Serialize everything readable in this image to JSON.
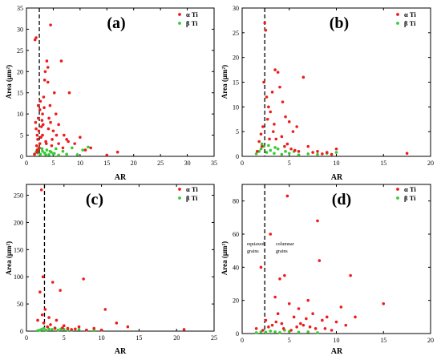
{
  "colors": {
    "alpha": "#ee1c1c",
    "beta": "#33cc33",
    "axis": "#000000",
    "threshold": "#000000"
  },
  "chart_data": [
    {
      "type": "scatter",
      "panel_label": "(a)",
      "xlabel": "AR",
      "ylabel": "Area (μm²)",
      "xlim": [
        0,
        35
      ],
      "ylim": [
        0,
        35
      ],
      "xticks": [
        0,
        5,
        10,
        15,
        20,
        25,
        30,
        35
      ],
      "yticks": [
        0,
        5,
        10,
        15,
        20,
        25,
        30,
        35
      ],
      "threshold_x": 2.4,
      "legend": [
        "α Ti",
        "β Ti"
      ],
      "annotations": [],
      "series": [
        {
          "name": "α Ti",
          "x": [
            1.6,
            1.8,
            2.0,
            2.2,
            1.7,
            1.9,
            2.1,
            2.3,
            2.5,
            2.8,
            3.0,
            3.2,
            3.5,
            3.8,
            4.0,
            4.2,
            4.5,
            4.8,
            5.2,
            5.5,
            6.0,
            6.5,
            7.0,
            7.5,
            8.0,
            9.0,
            10.0,
            11.0,
            12.0,
            15.0,
            17.0,
            2.0,
            2.5,
            3.4,
            4.0,
            4.5,
            5.0,
            6.0,
            1.8,
            2.2,
            2.6,
            3.0,
            3.3,
            3.6,
            4.4,
            2.4,
            2.7,
            3.1,
            1.5,
            2.0,
            2.9,
            3.7,
            4.1,
            4.7,
            5.6,
            6.8,
            7.8
          ],
          "y": [
            27.5,
            28.0,
            5.0,
            12.0,
            8.0,
            2.5,
            4.0,
            6.0,
            11.0,
            7.0,
            10.0,
            14.0,
            20.0,
            22.5,
            17.5,
            9.0,
            31.0,
            4.0,
            15.0,
            10.0,
            7.5,
            22.5,
            5.0,
            4.0,
            15.0,
            3.0,
            4.5,
            1.5,
            2.0,
            0.3,
            1.0,
            1.0,
            3.0,
            18.0,
            21.0,
            8.0,
            6.0,
            3.0,
            6.5,
            9.0,
            13.0,
            5.0,
            11.5,
            3.5,
            12.0,
            2.0,
            4.5,
            7.5,
            0.5,
            1.5,
            8.5,
            3.0,
            6.5,
            2.5,
            5.0,
            2.0,
            3.5
          ]
        },
        {
          "name": "β Ti",
          "x": [
            1.5,
            1.8,
            2.0,
            2.3,
            2.6,
            3.0,
            3.4,
            3.8,
            4.2,
            4.6,
            5.0,
            5.5,
            6.0,
            6.8,
            7.5,
            8.5,
            9.5,
            10.5,
            11.5,
            2.1,
            2.9,
            3.6,
            4.4,
            5.2
          ],
          "y": [
            0.5,
            1.0,
            1.5,
            2.0,
            0.5,
            1.2,
            0.8,
            1.5,
            0.4,
            1.0,
            0.6,
            1.8,
            0.3,
            1.2,
            0.5,
            2.0,
            0.4,
            1.5,
            2.2,
            0.8,
            1.8,
            0.4,
            1.2,
            0.7
          ]
        }
      ]
    },
    {
      "type": "scatter",
      "panel_label": "(b)",
      "xlabel": "AR",
      "ylabel": "Area (μm²)",
      "xlim": [
        0,
        20
      ],
      "ylim": [
        0,
        30
      ],
      "xticks": [
        0,
        5,
        10,
        15,
        20
      ],
      "yticks": [
        0,
        5,
        10,
        15,
        20,
        25,
        30
      ],
      "threshold_x": 2.4,
      "legend": [
        "α Ti",
        "β Ti"
      ],
      "annotations": [],
      "series": [
        {
          "name": "α Ti",
          "x": [
            2.4,
            2.5,
            2.3,
            2.6,
            2.8,
            3.0,
            3.2,
            3.5,
            3.8,
            4.0,
            4.3,
            4.6,
            5.0,
            5.4,
            5.8,
            6.5,
            7.0,
            8.0,
            9.0,
            10.0,
            17.5,
            1.8,
            2.0,
            2.2,
            2.7,
            3.3,
            3.6,
            4.2,
            4.8,
            5.2,
            6.0,
            1.6,
            2.1,
            2.9,
            3.4,
            4.5,
            5.6,
            7.5,
            8.5,
            9.5
          ],
          "y": [
            27.0,
            25.5,
            15.0,
            12.0,
            10.0,
            9.0,
            13.0,
            17.5,
            17.0,
            14.0,
            11.0,
            8.0,
            7.0,
            5.0,
            6.0,
            16.0,
            2.0,
            1.0,
            0.8,
            1.5,
            0.6,
            3.0,
            4.5,
            6.0,
            7.5,
            5.0,
            3.5,
            4.0,
            2.5,
            1.5,
            1.0,
            1.0,
            2.0,
            3.5,
            6.5,
            2.0,
            1.2,
            0.8,
            0.5,
            0.4
          ]
        },
        {
          "name": "β Ti",
          "x": [
            1.5,
            1.8,
            2.0,
            2.3,
            2.6,
            3.0,
            3.4,
            3.8,
            4.2,
            4.6,
            5.0,
            5.5,
            6.0,
            7.0,
            8.0,
            9.0,
            10.0,
            2.1,
            2.8,
            3.5
          ],
          "y": [
            0.5,
            1.0,
            1.5,
            2.0,
            0.8,
            1.2,
            0.6,
            1.5,
            0.4,
            1.0,
            0.6,
            1.0,
            0.3,
            0.5,
            0.4,
            0.6,
            0.8,
            2.5,
            2.2,
            1.8
          ]
        }
      ]
    },
    {
      "type": "scatter",
      "panel_label": "(c)",
      "xlabel": "AR",
      "ylabel": "Area (μm²)",
      "xlim": [
        0,
        25
      ],
      "ylim": [
        0,
        270
      ],
      "xticks": [
        0,
        5,
        10,
        15,
        20,
        25
      ],
      "yticks": [
        0,
        50,
        100,
        150,
        200,
        250
      ],
      "threshold_x": 2.4,
      "legend": [
        "α Ti",
        "β Ti"
      ],
      "annotations": [],
      "series": [
        {
          "name": "α Ti",
          "x": [
            2.0,
            2.2,
            1.8,
            2.1,
            2.5,
            3.0,
            3.5,
            4.0,
            4.5,
            5.0,
            5.5,
            6.0,
            7.0,
            7.6,
            8.0,
            9.0,
            10.0,
            10.5,
            12.0,
            13.5,
            21.0,
            1.5,
            2.3,
            2.8,
            3.2,
            3.8,
            4.8,
            6.5
          ],
          "y": [
            260.0,
            100.0,
            72.0,
            30.0,
            40.0,
            25.0,
            90.0,
            20.0,
            75.0,
            10.0,
            5.0,
            3.0,
            8.0,
            96.0,
            2.0,
            5.0,
            2.0,
            40.0,
            15.0,
            8.0,
            3.0,
            20.0,
            15.0,
            8.0,
            12.0,
            5.0,
            6.0,
            4.0
          ]
        },
        {
          "name": "β Ti",
          "x": [
            1.5,
            1.8,
            2.0,
            2.3,
            2.6,
            3.0,
            3.4,
            3.8,
            4.2,
            4.6,
            5.0,
            5.5,
            6.0,
            7.0,
            8.0,
            9.0,
            10.0
          ],
          "y": [
            1.0,
            2.0,
            3.0,
            5.0,
            2.0,
            4.0,
            3.0,
            6.0,
            2.0,
            4.0,
            3.0,
            2.0,
            1.5,
            3.0,
            2.0,
            1.0,
            2.0
          ]
        }
      ]
    },
    {
      "type": "scatter",
      "panel_label": "(d)",
      "xlabel": "AR",
      "ylabel": "Area (μm²)",
      "xlim": [
        0,
        20
      ],
      "ylim": [
        0,
        90
      ],
      "xticks": [
        0,
        5,
        10,
        15,
        20
      ],
      "yticks": [
        0,
        20,
        40,
        60,
        80
      ],
      "threshold_x": 2.4,
      "legend": [
        "α Ti",
        "β Ti"
      ],
      "annotations": [
        "equiaxed grains",
        "columnar grains"
      ],
      "series": [
        {
          "name": "α Ti",
          "x": [
            2.0,
            3.0,
            3.5,
            4.0,
            4.5,
            4.8,
            5.0,
            5.5,
            6.0,
            6.5,
            7.0,
            7.5,
            8.0,
            8.2,
            8.5,
            9.0,
            10.0,
            10.5,
            11.0,
            11.5,
            12.0,
            15.0,
            1.5,
            2.5,
            3.2,
            3.8,
            4.2,
            5.8,
            6.8,
            7.8,
            9.5,
            2.2,
            2.8,
            3.6,
            4.4,
            5.2,
            6.2,
            7.2,
            8.8
          ],
          "y": [
            40.0,
            60.0,
            22.0,
            33.0,
            35.0,
            83.0,
            18.0,
            10.0,
            15.0,
            5.0,
            20.0,
            12.0,
            68.0,
            44.0,
            8.0,
            10.0,
            7.0,
            16.0,
            5.0,
            35.0,
            10.0,
            18.0,
            3.0,
            8.0,
            5.0,
            12.0,
            6.0,
            4.0,
            9.0,
            3.0,
            2.0,
            2.0,
            4.0,
            7.0,
            3.0,
            2.0,
            6.0,
            4.0,
            3.0
          ]
        },
        {
          "name": "β Ti",
          "x": [
            1.5,
            2.0,
            2.5,
            3.0,
            3.5,
            4.0,
            4.5,
            5.0,
            6.0,
            7.0,
            8.0
          ],
          "y": [
            0.5,
            1.0,
            0.8,
            1.5,
            1.0,
            0.6,
            2.0,
            1.2,
            0.8,
            1.0,
            0.5
          ]
        }
      ]
    }
  ]
}
